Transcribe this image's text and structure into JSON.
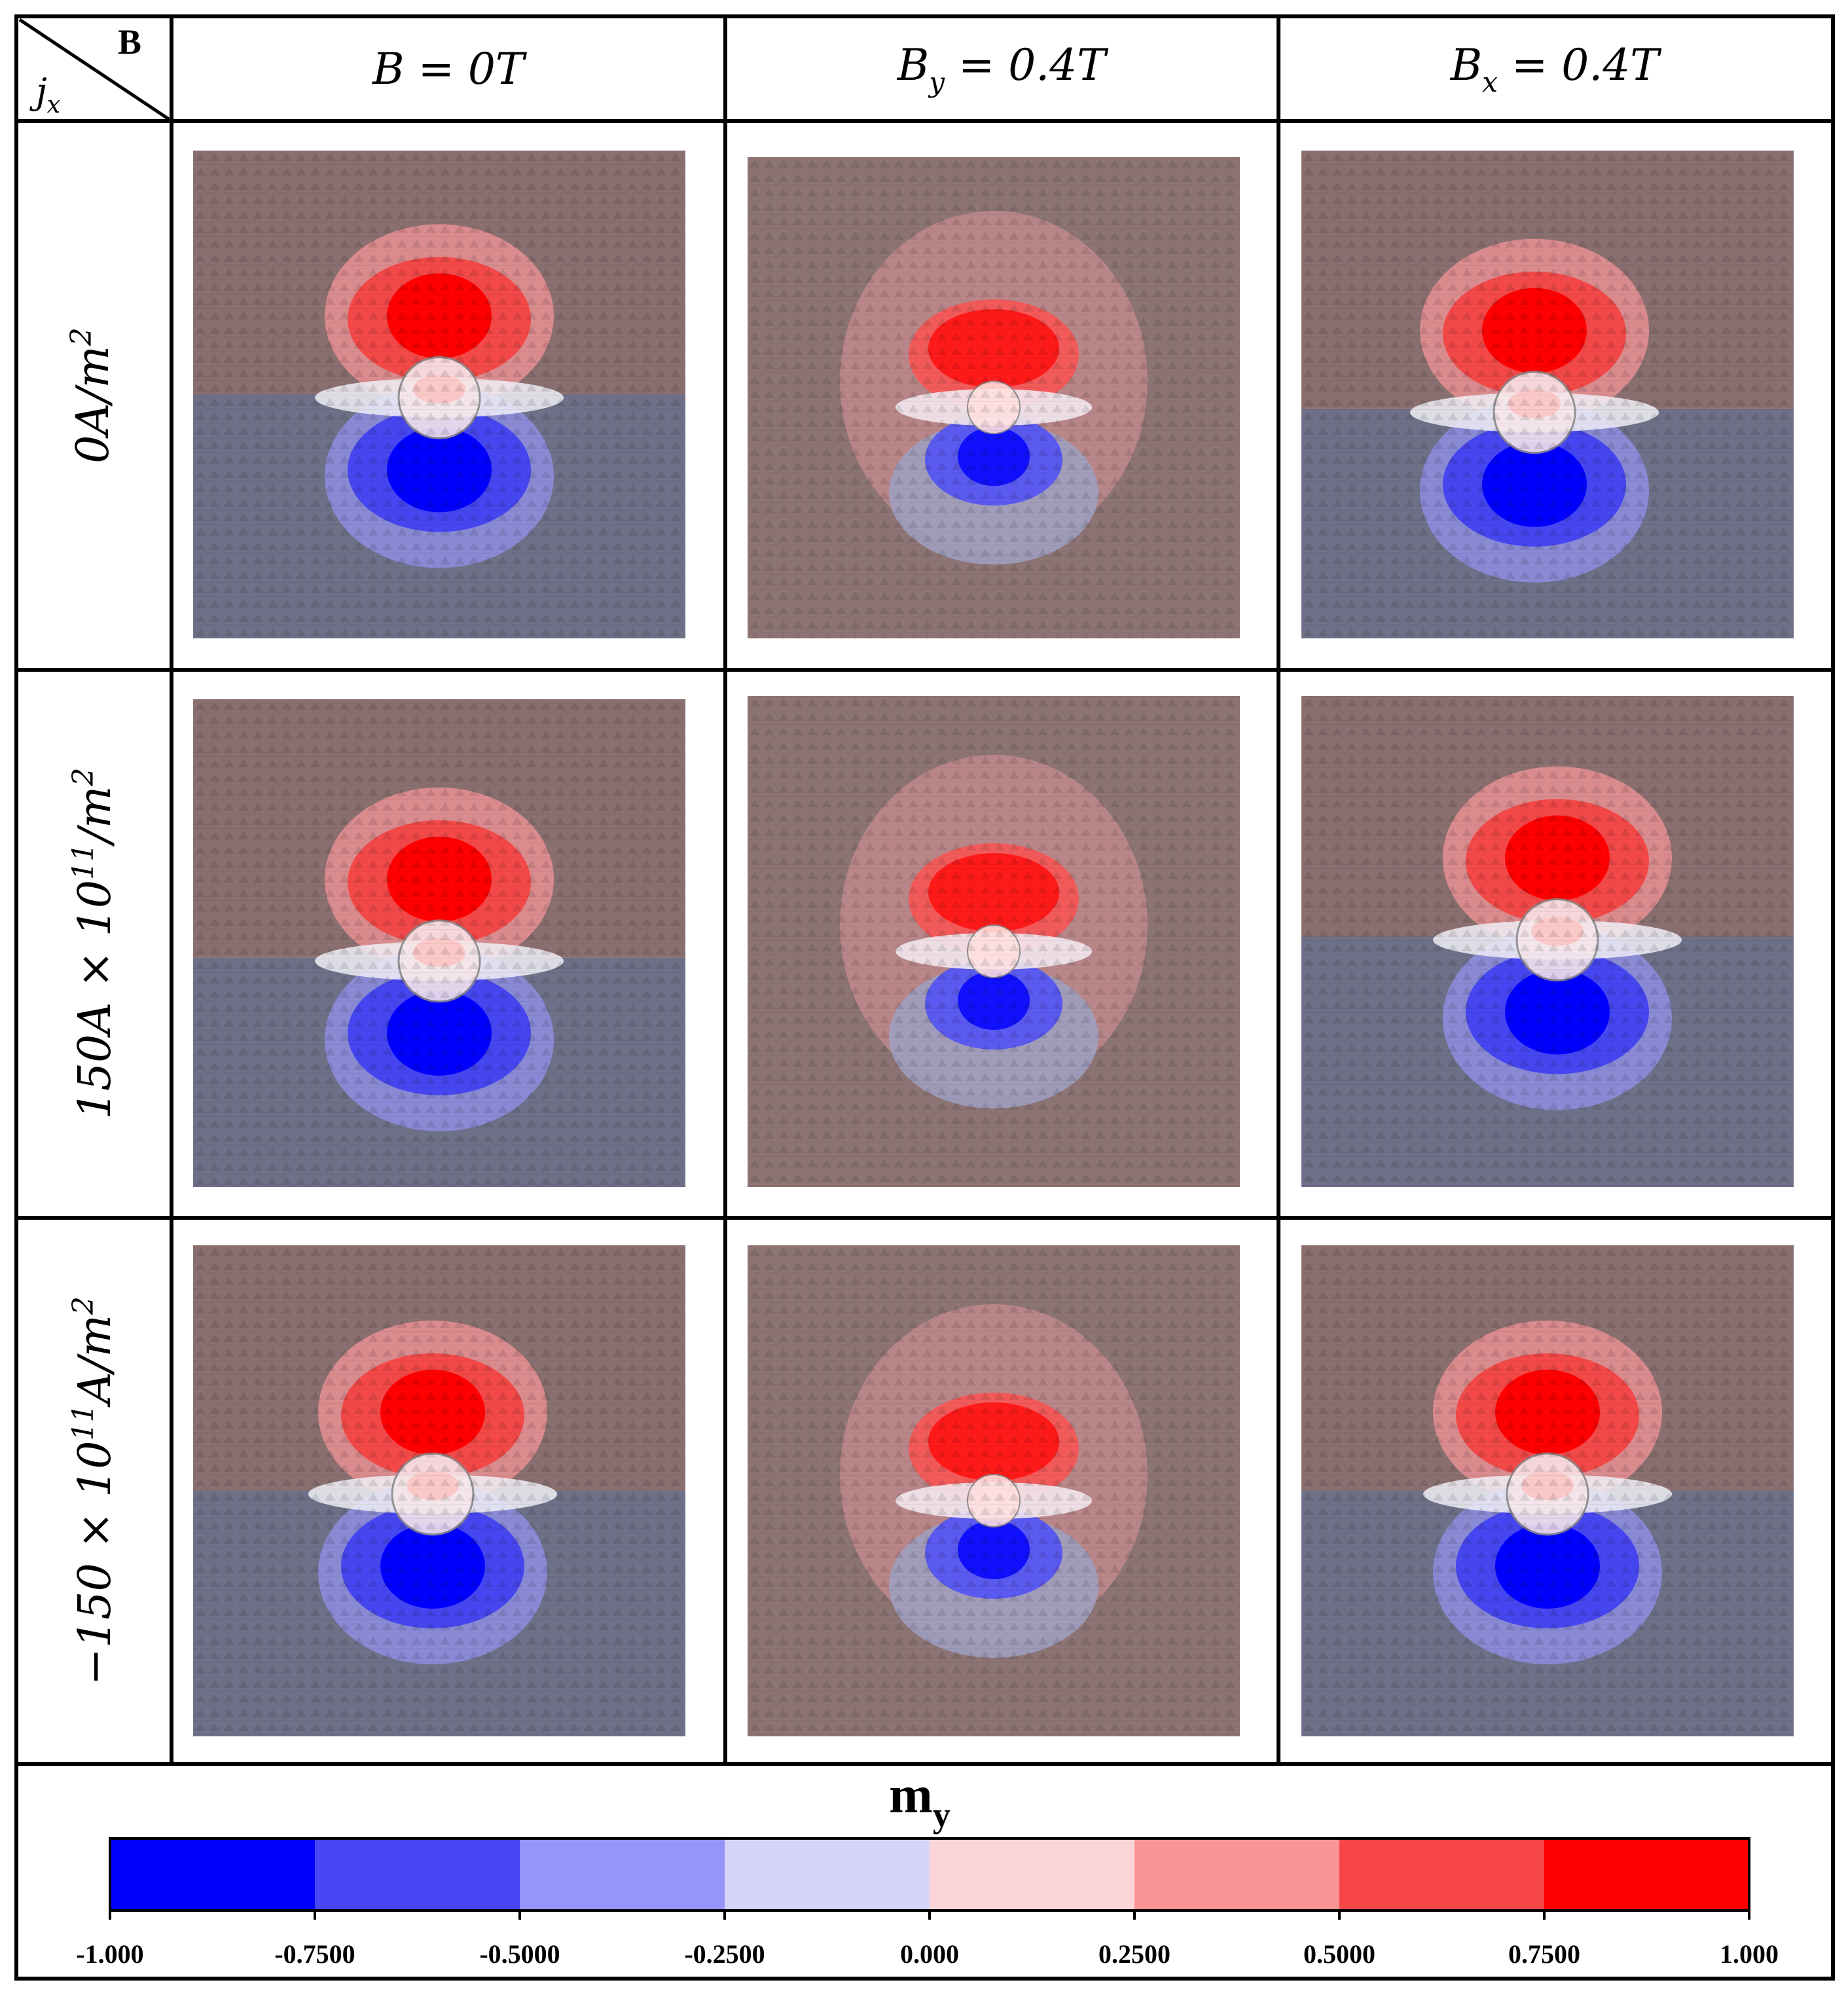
{
  "corner": {
    "field_label": "B",
    "current_label": "j",
    "current_sub": "x"
  },
  "columns": [
    {
      "main": "B",
      "sub": "",
      "rest": " = 0T"
    },
    {
      "main": "B",
      "sub": "y",
      "rest": " = 0.4T"
    },
    {
      "main": "B",
      "sub": "x",
      "rest": " = 0.4T"
    }
  ],
  "rows": [
    {
      "pre": "0A/m",
      "sup": "2",
      "post": ""
    },
    {
      "pre": "150A × 10",
      "sup": "11",
      "post": "/m",
      "sup2": "2"
    },
    {
      "pre": "−150 × 10",
      "sup": "11",
      "post": "A/m",
      "sup2": "2"
    }
  ],
  "colorbar": {
    "title": "m",
    "title_sub": "y",
    "ticks": [
      "-1.000",
      "-0.7500",
      "-0.5000",
      "-0.2500",
      "0.000",
      "0.2500",
      "0.5000",
      "0.7500",
      "1.000"
    ],
    "colors": [
      "#0000ff",
      "#4646f4",
      "#9494fa",
      "#d4d4fa",
      "#fcd6d6",
      "#fa9494",
      "#f64646",
      "#ff0000"
    ]
  },
  "colors": {
    "upper_bg": "#8a6f70",
    "lower_bg": "#6e7088",
    "neutral_bg": "#8d7474"
  }
}
